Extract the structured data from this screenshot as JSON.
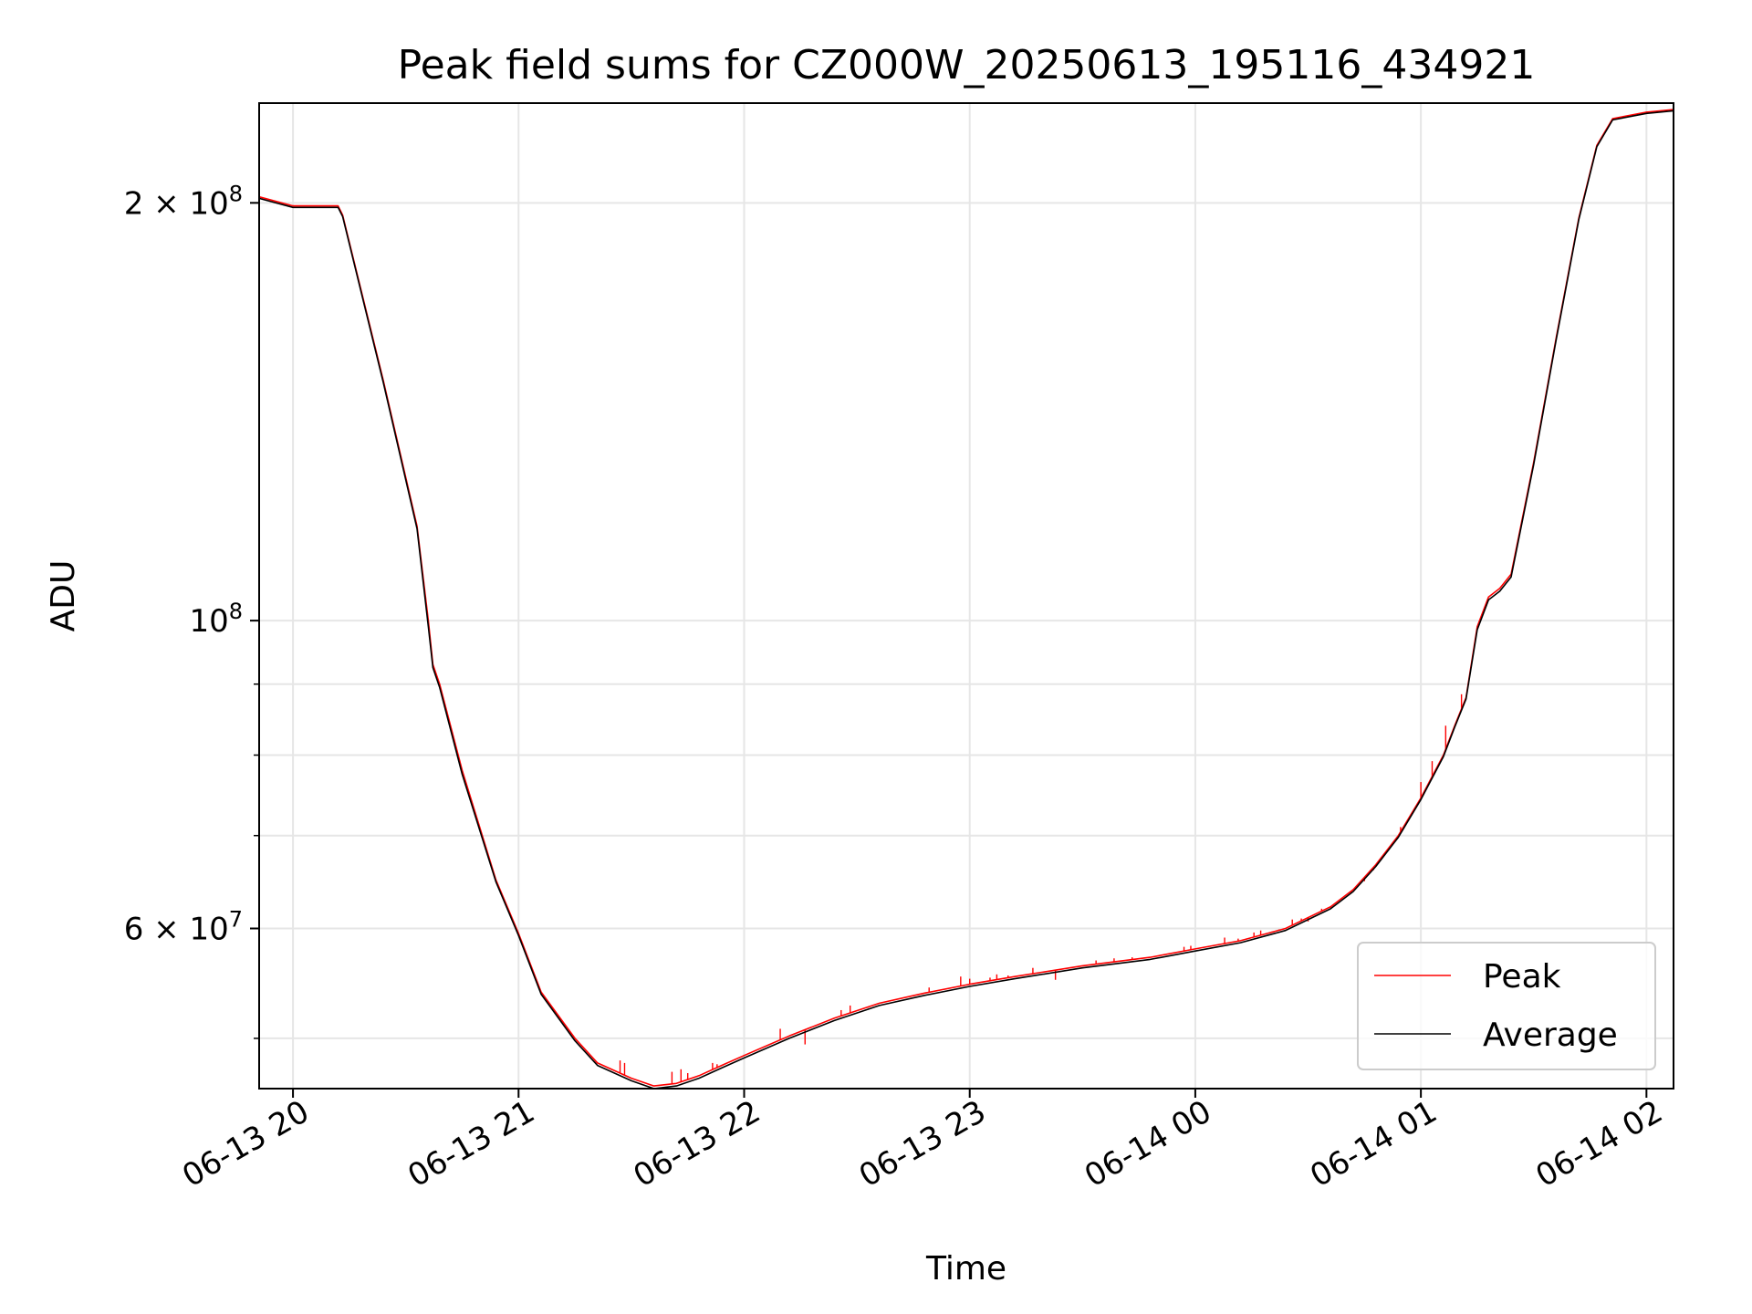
{
  "chart_data": {
    "type": "line",
    "title": "Peak field sums for CZ000W_20250613_195116_434921",
    "xlabel": "Time",
    "ylabel": "ADU",
    "yscale": "log",
    "ylim": [
      46000000,
      236000000
    ],
    "xlim_hours": [
      19.85,
      26.12
    ],
    "x_ticks": [
      {
        "label": "06-13 20",
        "value": 20
      },
      {
        "label": "06-13 21",
        "value": 21
      },
      {
        "label": "06-13 22",
        "value": 22
      },
      {
        "label": "06-13 23",
        "value": 23
      },
      {
        "label": "06-14 00",
        "value": 24
      },
      {
        "label": "06-14 01",
        "value": 25
      },
      {
        "label": "06-14 02",
        "value": 26
      }
    ],
    "y_ticks_labeled": [
      {
        "value": 200000000,
        "mantissa": "2",
        "times": "×",
        "base": "10",
        "exp": "8"
      },
      {
        "value": 100000000,
        "mantissa": "",
        "times": "",
        "base": "10",
        "exp": "8"
      },
      {
        "value": 60000000,
        "mantissa": "6",
        "times": "×",
        "base": "10",
        "exp": "7"
      }
    ],
    "y_ticks_minor": [
      50000000,
      70000000,
      80000000,
      90000000
    ],
    "grid": true,
    "legend_position": "lower-right",
    "series": [
      {
        "name": "Peak",
        "color": "#ff0000",
        "x": [
          19.85,
          20.0,
          20.05,
          20.2,
          20.22,
          20.4,
          20.55,
          20.6,
          20.62,
          20.65,
          20.75,
          20.9,
          21.0,
          21.1,
          21.25,
          21.35,
          21.5,
          21.6,
          21.7,
          21.8,
          21.9,
          22.0,
          22.2,
          22.4,
          22.6,
          22.8,
          23.0,
          23.2,
          23.5,
          23.8,
          24.0,
          24.2,
          24.4,
          24.6,
          24.7,
          24.8,
          24.9,
          25.0,
          25.1,
          25.15,
          25.2,
          25.25,
          25.3,
          25.35,
          25.4,
          25.5,
          25.6,
          25.7,
          25.78,
          25.85,
          26.0,
          26.12
        ],
        "y": [
          202000000,
          199000000,
          199000000,
          199000000,
          196000000,
          149000000,
          117000000,
          100000000,
          93000000,
          90000000,
          78000000,
          65000000,
          59500000,
          54000000,
          50000000,
          48000000,
          46800000,
          46200000,
          46400000,
          47000000,
          47800000,
          48600000,
          50200000,
          51700000,
          53000000,
          53900000,
          54700000,
          55400000,
          56400000,
          57200000,
          58000000,
          58800000,
          60000000,
          62200000,
          64000000,
          66700000,
          70000000,
          74500000,
          80000000,
          84000000,
          88000000,
          99000000,
          104000000,
          105500000,
          108000000,
          130000000,
          160000000,
          195000000,
          220000000,
          230000000,
          232500000,
          233500000
        ],
        "spikes": [
          [
            21.45,
            48200000
          ],
          [
            21.47,
            48000000
          ],
          [
            21.68,
            47300000
          ],
          [
            21.72,
            47500000
          ],
          [
            21.75,
            47200000
          ],
          [
            21.86,
            48000000
          ],
          [
            21.88,
            47900000
          ],
          [
            22.16,
            50800000
          ],
          [
            22.27,
            49500000
          ],
          [
            22.43,
            52400000
          ],
          [
            22.47,
            52800000
          ],
          [
            22.55,
            52600000
          ],
          [
            22.82,
            54400000
          ],
          [
            22.96,
            55400000
          ],
          [
            23.0,
            55200000
          ],
          [
            23.09,
            55300000
          ],
          [
            23.12,
            55600000
          ],
          [
            23.17,
            55500000
          ],
          [
            23.28,
            56200000
          ],
          [
            23.38,
            55100000
          ],
          [
            23.56,
            56900000
          ],
          [
            23.64,
            57100000
          ],
          [
            23.72,
            57200000
          ],
          [
            23.95,
            58200000
          ],
          [
            23.98,
            58300000
          ],
          [
            24.13,
            59100000
          ],
          [
            24.19,
            59000000
          ],
          [
            24.26,
            59600000
          ],
          [
            24.29,
            59800000
          ],
          [
            24.34,
            59700000
          ],
          [
            24.37,
            59900000
          ],
          [
            24.43,
            60900000
          ],
          [
            24.47,
            61000000
          ],
          [
            24.5,
            60700000
          ],
          [
            24.56,
            62000000
          ],
          [
            24.6,
            62100000
          ],
          [
            24.65,
            63000000
          ],
          [
            24.69,
            63600000
          ],
          [
            24.75,
            64900000
          ],
          [
            24.79,
            66100000
          ],
          [
            24.85,
            68300000
          ],
          [
            24.91,
            71000000
          ],
          [
            24.94,
            71700000
          ],
          [
            25.0,
            76500000
          ],
          [
            25.05,
            79200000
          ],
          [
            25.11,
            84000000
          ],
          [
            25.18,
            88500000
          ]
        ]
      },
      {
        "name": "Average",
        "color": "#000000",
        "x": [
          19.85,
          20.0,
          20.05,
          20.2,
          20.22,
          20.4,
          20.55,
          20.6,
          20.62,
          20.65,
          20.75,
          20.9,
          21.0,
          21.1,
          21.25,
          21.35,
          21.5,
          21.6,
          21.7,
          21.8,
          21.9,
          22.0,
          22.2,
          22.4,
          22.6,
          22.8,
          23.0,
          23.2,
          23.5,
          23.8,
          24.0,
          24.2,
          24.4,
          24.6,
          24.7,
          24.8,
          24.9,
          25.0,
          25.1,
          25.15,
          25.2,
          25.25,
          25.3,
          25.35,
          25.4,
          25.5,
          25.6,
          25.7,
          25.78,
          25.85,
          26.0,
          26.12
        ],
        "y": [
          201500000,
          198500000,
          198500000,
          198500000,
          195500000,
          148500000,
          116500000,
          99000000,
          92500000,
          89500000,
          77500000,
          64800000,
          59300000,
          53800000,
          49800000,
          47800000,
          46600000,
          46000000,
          46200000,
          46800000,
          47600000,
          48400000,
          50000000,
          51500000,
          52800000,
          53700000,
          54500000,
          55200000,
          56200000,
          57000000,
          57800000,
          58600000,
          59800000,
          62000000,
          63800000,
          66500000,
          69800000,
          74300000,
          79800000,
          83800000,
          87800000,
          98500000,
          103500000,
          105000000,
          107500000,
          129500000,
          159500000,
          194500000,
          219500000,
          229500000,
          232000000,
          233000000
        ]
      }
    ]
  }
}
